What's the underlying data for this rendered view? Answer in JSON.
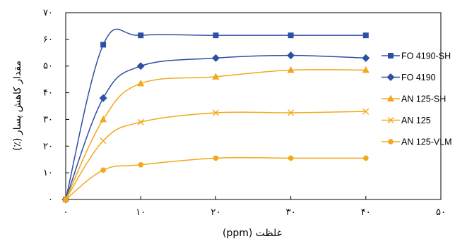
{
  "chart_data": {
    "type": "line",
    "xlabel": "غلظت (ppm)",
    "ylabel": "مقدار کاهش پسار (٪)",
    "xlim": [
      0,
      50
    ],
    "ylim": [
      0,
      70
    ],
    "x_ticks": [
      0,
      10,
      20,
      30,
      40,
      50
    ],
    "y_ticks": [
      0,
      10,
      20,
      30,
      40,
      50,
      60,
      70
    ],
    "x_tick_labels": [
      "۰",
      "۱۰",
      "۲۰",
      "۳۰",
      "۴۰",
      "۵۰"
    ],
    "y_tick_labels": [
      "۰",
      "۱۰",
      "۲۰",
      "۳۰",
      "۴۰",
      "۵۰",
      "۶۰",
      "۷۰"
    ],
    "grid": false,
    "legend_position": "right",
    "x": [
      0,
      5,
      10,
      20,
      30,
      40
    ],
    "series": [
      {
        "name": "FO 4190-SH",
        "values": [
          0,
          58,
          61.5,
          61.5,
          61.5,
          61.5
        ],
        "color": "#2E4FA3",
        "marker": "square"
      },
      {
        "name": "FO 4190",
        "values": [
          0,
          38,
          50,
          53,
          54,
          53
        ],
        "color": "#2E4FA3",
        "marker": "diamond"
      },
      {
        "name": "AN 125-SH",
        "values": [
          0,
          30,
          43.5,
          46,
          48.5,
          48.5
        ],
        "color": "#F2A81D",
        "marker": "triangle"
      },
      {
        "name": "AN 125",
        "values": [
          0,
          22,
          29,
          32.5,
          32.5,
          33
        ],
        "color": "#F2A81D",
        "marker": "x"
      },
      {
        "name": "AN 125-VLM",
        "values": [
          0,
          11,
          13,
          15.5,
          15.5,
          15.5
        ],
        "color": "#F2A81D",
        "marker": "circle"
      }
    ]
  }
}
